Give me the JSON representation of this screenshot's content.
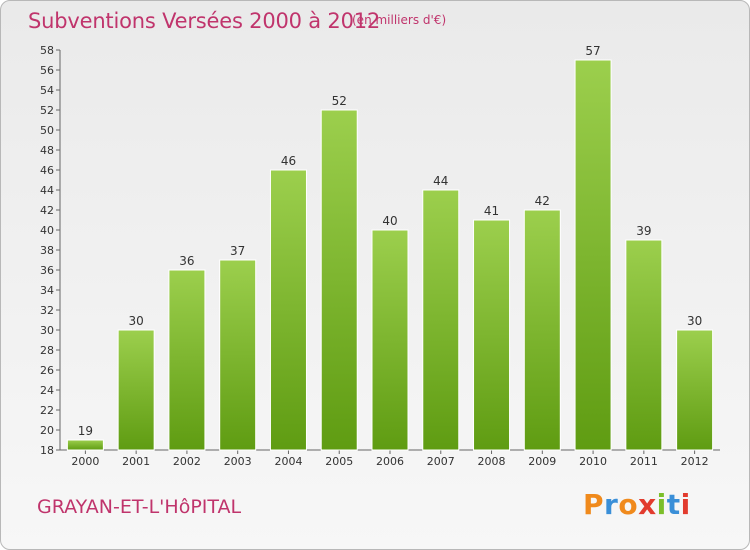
{
  "header": {
    "title": "Subventions Versées 2000 à 2012",
    "subtitle": "(en milliers d'€)"
  },
  "footer": {
    "commune": "GRAYAN-ET-L'HôPITAL",
    "logo_text": "Proxiti"
  },
  "colors": {
    "title": "#c0346c",
    "bar_top": "#9ccf4d",
    "bar_bottom": "#5f9c12",
    "logo_letters": [
      "#f08a1c",
      "#3a8fd8",
      "#f08a1c",
      "#e23b2e",
      "#7cbf2a",
      "#3a8fd8",
      "#e23b2e"
    ]
  },
  "chart_data": {
    "type": "bar",
    "title": "Subventions Versées 2000 à 2012",
    "subtitle": "(en milliers d'€)",
    "categories": [
      "2000",
      "2001",
      "2002",
      "2003",
      "2004",
      "2005",
      "2006",
      "2007",
      "2008",
      "2009",
      "2010",
      "2011",
      "2012"
    ],
    "values": [
      19,
      30,
      36,
      37,
      46,
      52,
      40,
      44,
      41,
      42,
      57,
      39,
      30
    ],
    "ylim": [
      18,
      58
    ],
    "yticks": [
      18,
      20,
      22,
      24,
      26,
      28,
      30,
      32,
      34,
      36,
      38,
      40,
      42,
      44,
      46,
      48,
      50,
      52,
      54,
      56,
      58
    ],
    "grid": false,
    "data_labels": true
  }
}
